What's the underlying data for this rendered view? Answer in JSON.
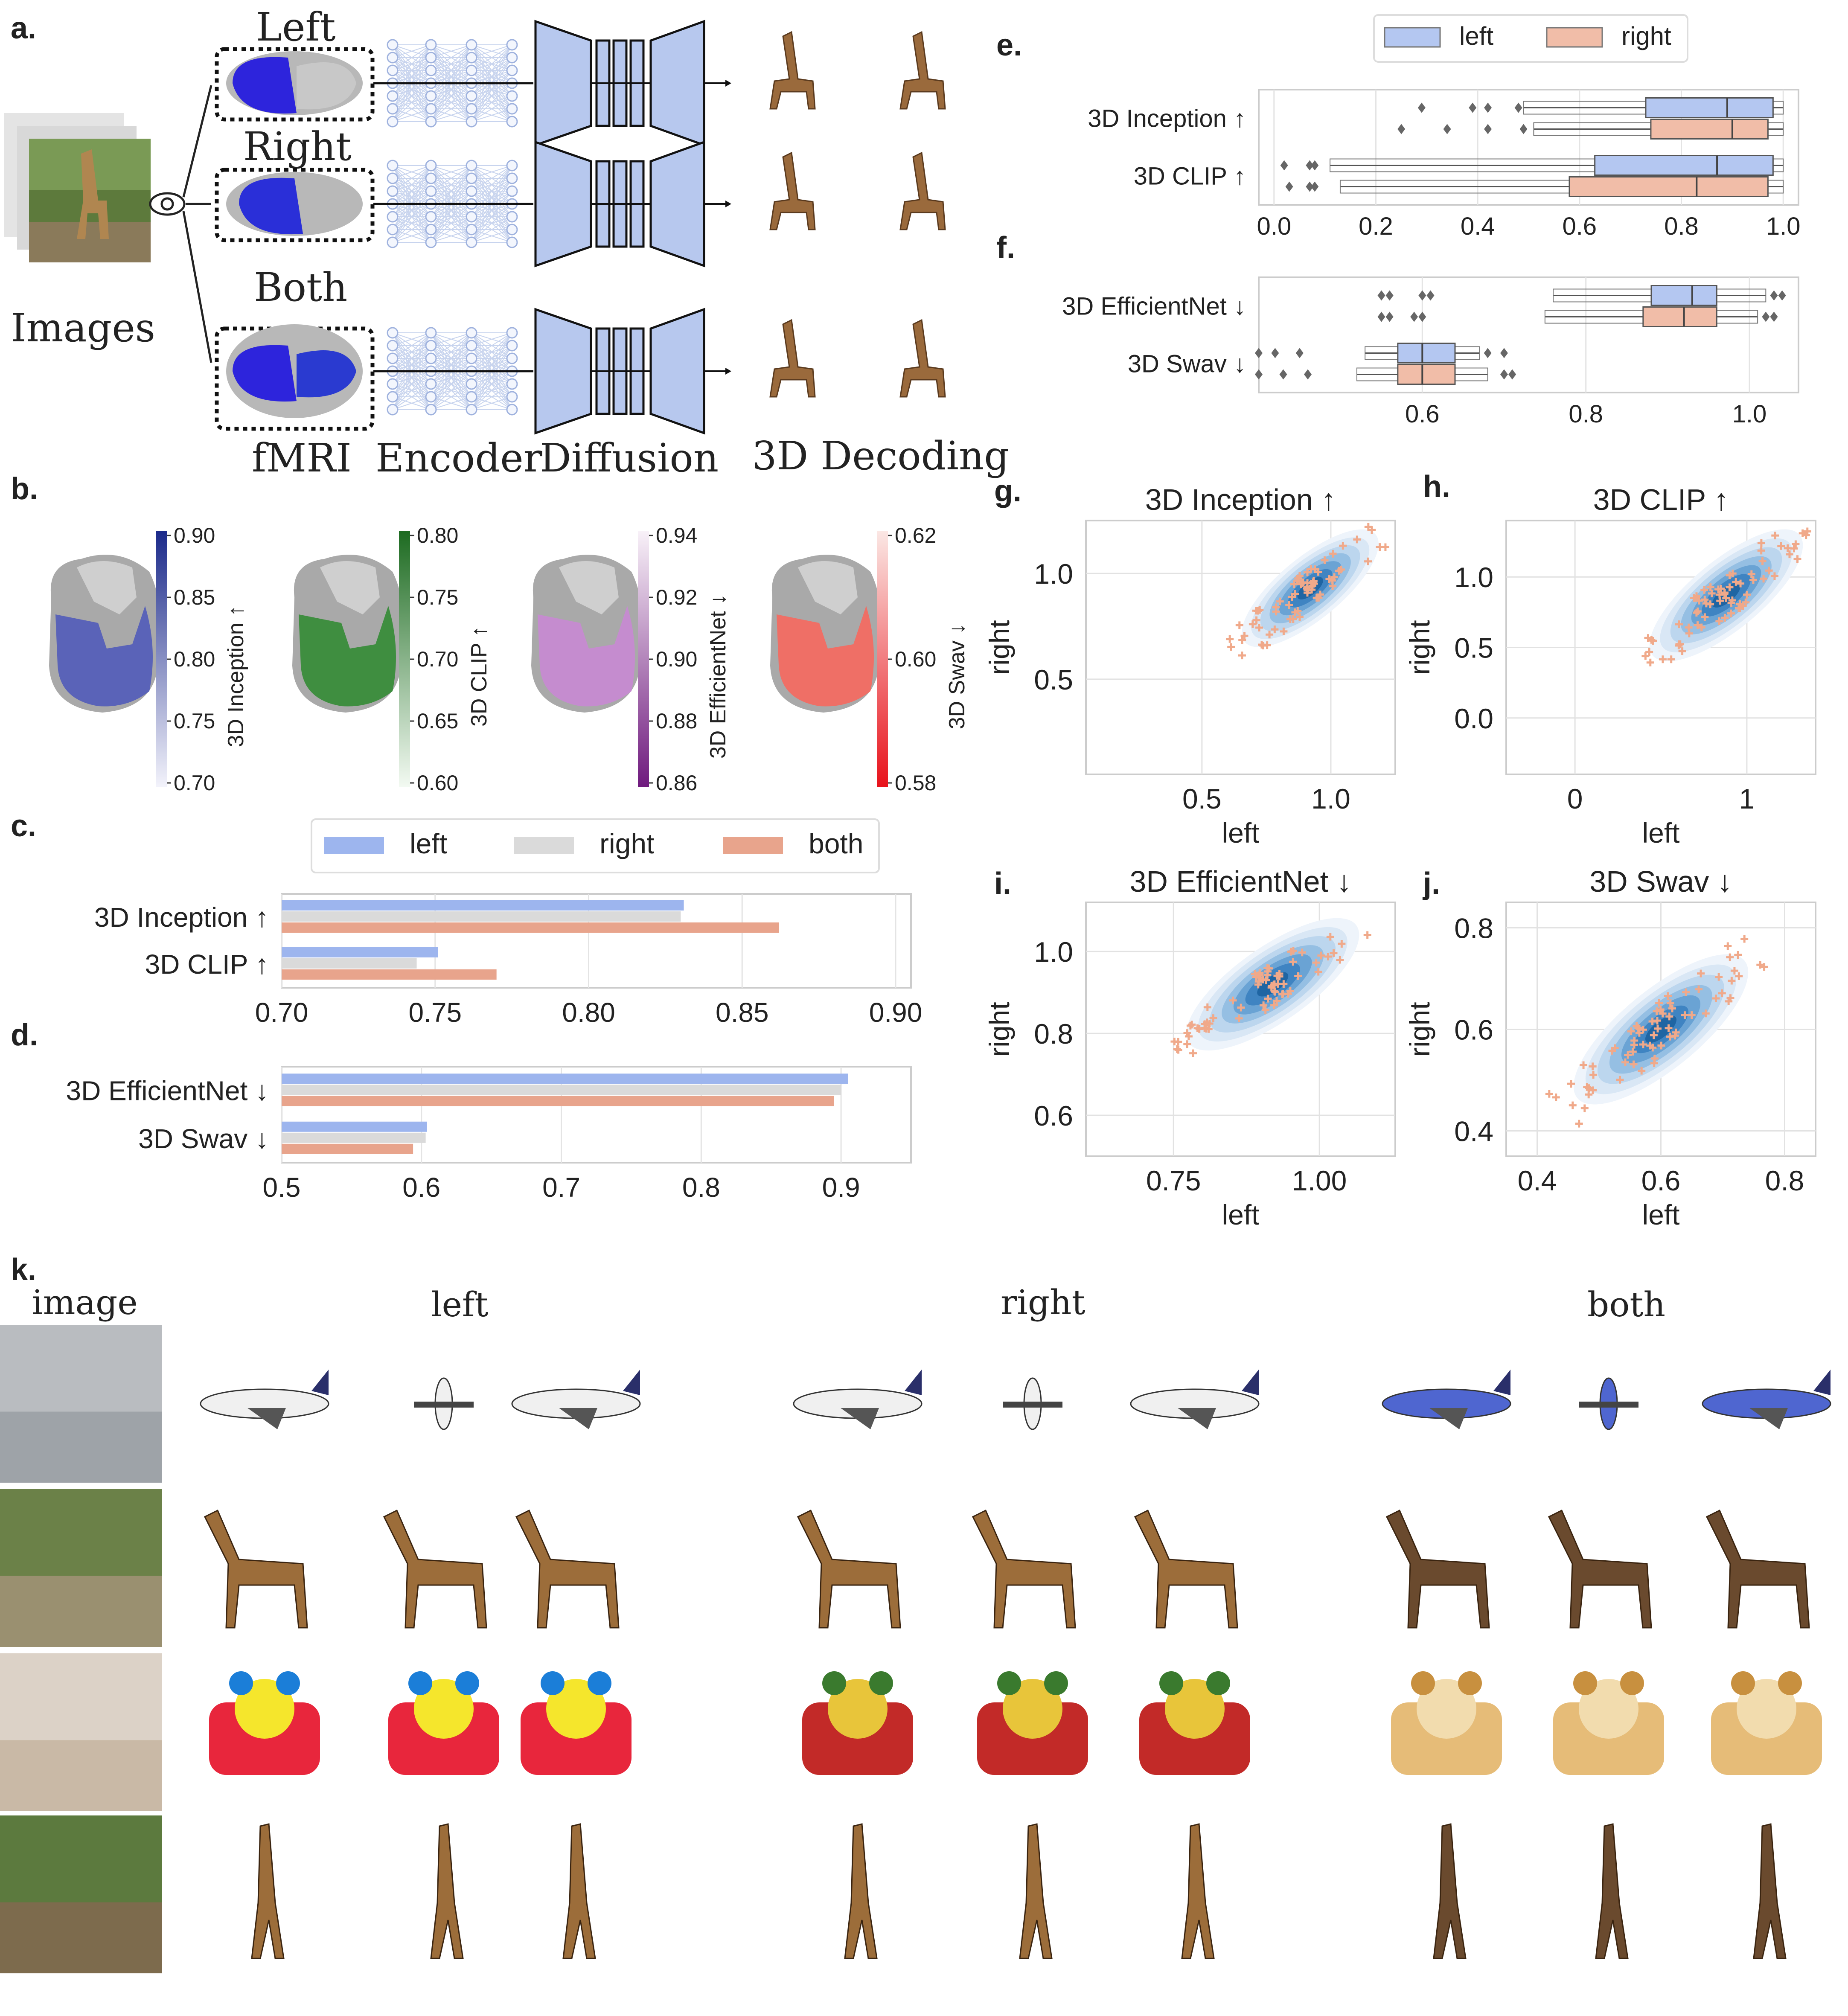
{
  "panel_letters": {
    "a": "a.",
    "b": "b.",
    "c": "c.",
    "d": "d.",
    "e": "e.",
    "f": "f.",
    "g": "g.",
    "h": "h.",
    "i": "i.",
    "j": "j.",
    "k": "k."
  },
  "pipeline": {
    "row_labels": [
      "Left",
      "Right",
      "Both"
    ],
    "images_label": "Images",
    "bottom_labels": {
      "fmri": "fMRI",
      "encoder": "Encoder",
      "diffusion": "Diffusion",
      "decoding": "3D Decoding"
    }
  },
  "colorbars": [
    {
      "label": "3D Inception ↑",
      "ticks": [
        "0.90",
        "0.85",
        "0.80",
        "0.75",
        "0.70"
      ],
      "top": "#1b2a8a",
      "bottom": "#f3f3fb",
      "fill": "#5a63b8"
    },
    {
      "label": "3D CLIP ↑",
      "ticks": [
        "0.80",
        "0.75",
        "0.70",
        "0.65",
        "0.60"
      ],
      "top": "#1d6b21",
      "bottom": "#f3faf2",
      "fill": "#3f8e40"
    },
    {
      "label": "3D EfficientNet ↓",
      "ticks": [
        "0.94",
        "0.92",
        "0.90",
        "0.88",
        "0.86"
      ],
      "top": "#f8f1f8",
      "bottom": "#6f1a7e",
      "fill": "#c58ccf"
    },
    {
      "label": "3D Swav ↓",
      "ticks": [
        "0.62",
        "0.60",
        "0.58"
      ],
      "top": "#fbe7e4",
      "bottom": "#e8121b",
      "fill": "#ef6f66"
    }
  ],
  "section_k": {
    "column_headers": {
      "image": "image",
      "left": "left",
      "right": "right",
      "both": "both"
    }
  },
  "colors": {
    "left": "#9db5ee",
    "right": "#dadada",
    "both": "#e8a48c",
    "box_left": "#b4c7f1",
    "box_right": "#f1bda8",
    "kde_dark": "#1f65a3",
    "scatter": "#f0a98a"
  },
  "chart_data": [
    {
      "id": "c",
      "type": "bar",
      "orientation": "horizontal",
      "categories": [
        "3D Inception ↑",
        "3D CLIP ↑"
      ],
      "series": [
        {
          "name": "left",
          "values": [
            0.831,
            0.751
          ]
        },
        {
          "name": "right",
          "values": [
            0.83,
            0.744
          ]
        },
        {
          "name": "both",
          "values": [
            0.862,
            0.77
          ]
        }
      ],
      "xlim": [
        0.7,
        0.905
      ],
      "xticks": [
        "0.70",
        "0.75",
        "0.80",
        "0.85",
        "0.90"
      ],
      "legend": "top",
      "grid": true
    },
    {
      "id": "d",
      "type": "bar",
      "orientation": "horizontal",
      "categories": [
        "3D EfficientNet ↓",
        "3D Swav ↓"
      ],
      "series": [
        {
          "name": "left",
          "values": [
            0.905,
            0.604
          ]
        },
        {
          "name": "right",
          "values": [
            0.9,
            0.603
          ]
        },
        {
          "name": "both",
          "values": [
            0.895,
            0.594
          ]
        }
      ],
      "xlim": [
        0.5,
        0.95
      ],
      "xticks": [
        "0.5",
        "0.6",
        "0.7",
        "0.8",
        "0.9"
      ],
      "grid": true
    },
    {
      "id": "e",
      "type": "box",
      "orientation": "horizontal",
      "categories": [
        "3D Inception ↑",
        "3D CLIP ↑"
      ],
      "series": [
        {
          "name": "left",
          "boxes": [
            {
              "whislo": 0.49,
              "q1": 0.73,
              "med": 0.89,
              "q3": 0.98,
              "whishi": 1.0,
              "fliers": [
                0.29,
                0.39,
                0.42,
                0.48
              ]
            },
            {
              "whislo": 0.11,
              "q1": 0.63,
              "med": 0.87,
              "q3": 0.98,
              "whishi": 1.0,
              "fliers": [
                0.02,
                0.07,
                0.08
              ]
            }
          ]
        },
        {
          "name": "right",
          "boxes": [
            {
              "whislo": 0.51,
              "q1": 0.74,
              "med": 0.9,
              "q3": 0.97,
              "whishi": 1.0,
              "fliers": [
                0.25,
                0.34,
                0.42,
                0.49
              ]
            },
            {
              "whislo": 0.13,
              "q1": 0.58,
              "med": 0.83,
              "q3": 0.97,
              "whishi": 1.0,
              "fliers": [
                0.03,
                0.07,
                0.08
              ]
            }
          ]
        }
      ],
      "xlim": [
        -0.03,
        1.03
      ],
      "xticks": [
        "0.0",
        "0.2",
        "0.4",
        "0.6",
        "0.8",
        "1.0"
      ],
      "legend": "top"
    },
    {
      "id": "f",
      "type": "box",
      "orientation": "horizontal",
      "categories": [
        "3D EfficientNet ↓",
        "3D Swav ↓"
      ],
      "series": [
        {
          "name": "left",
          "boxes": [
            {
              "whislo": 0.76,
              "q1": 0.88,
              "med": 0.93,
              "q3": 0.96,
              "whishi": 1.02,
              "fliers": [
                0.55,
                0.56,
                0.6,
                0.61,
                1.03,
                1.04
              ]
            },
            {
              "whislo": 0.53,
              "q1": 0.57,
              "med": 0.6,
              "q3": 0.64,
              "whishi": 0.67,
              "fliers": [
                0.4,
                0.42,
                0.45,
                0.68,
                0.7
              ]
            }
          ]
        },
        {
          "name": "right",
          "boxes": [
            {
              "whislo": 0.75,
              "q1": 0.87,
              "med": 0.92,
              "q3": 0.96,
              "whishi": 1.01,
              "fliers": [
                0.55,
                0.56,
                0.59,
                0.6,
                1.02,
                1.03
              ]
            },
            {
              "whislo": 0.52,
              "q1": 0.57,
              "med": 0.6,
              "q3": 0.64,
              "whishi": 0.68,
              "fliers": [
                0.4,
                0.43,
                0.46,
                0.7,
                0.71
              ]
            }
          ]
        }
      ],
      "xlim": [
        0.4,
        1.06
      ],
      "xticks": [
        "0.6",
        "0.8",
        "1.0"
      ]
    },
    {
      "id": "g",
      "type": "scatter",
      "title": "3D Inception ↑",
      "xlabel": "left",
      "ylabel": "right",
      "xlim": [
        0.05,
        1.25
      ],
      "ylim": [
        0.05,
        1.25
      ],
      "xticks": [
        "0.5",
        "1.0"
      ],
      "yticks": [
        "0.5",
        "1.0"
      ],
      "center": [
        0.92,
        0.93
      ],
      "spread": 0.13
    },
    {
      "id": "h",
      "type": "scatter",
      "title": "3D CLIP ↑",
      "xlabel": "left",
      "ylabel": "right",
      "xlim": [
        -0.4,
        1.4
      ],
      "ylim": [
        -0.4,
        1.4
      ],
      "xticks": [
        "0",
        "1"
      ],
      "yticks": [
        "0.0",
        "0.5",
        "1.0"
      ],
      "center": [
        0.88,
        0.87
      ],
      "spread": 0.22
    },
    {
      "id": "i",
      "type": "scatter",
      "title": "3D EfficientNet ↓",
      "xlabel": "left",
      "ylabel": "right",
      "xlim": [
        0.6,
        1.13
      ],
      "ylim": [
        0.5,
        1.12
      ],
      "xticks": [
        "0.75",
        "1.00"
      ],
      "yticks": [
        "0.6",
        "0.8",
        "1.0"
      ],
      "center": [
        0.92,
        0.92
      ],
      "spread": 0.07
    },
    {
      "id": "j",
      "type": "scatter",
      "title": "3D Swav ↓",
      "xlabel": "left",
      "ylabel": "right",
      "xlim": [
        0.35,
        0.85
      ],
      "ylim": [
        0.35,
        0.85
      ],
      "xticks": [
        "0.4",
        "0.6",
        "0.8"
      ],
      "yticks": [
        "0.4",
        "0.6",
        "0.8"
      ],
      "center": [
        0.6,
        0.6
      ],
      "spread": 0.07
    }
  ]
}
